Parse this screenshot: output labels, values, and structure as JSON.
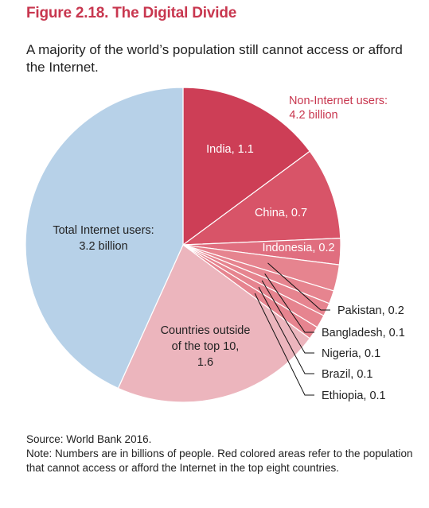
{
  "figure": {
    "title": "Figure 2.18. The Digital Divide",
    "subtitle": "A majority of the world’s population still cannot access or afford the Internet.",
    "source": "Source: World Bank 2016.",
    "note": "Note: Numbers are in billions of people. Red colored areas refer to the population that cannot access or afford the Internet in the top eight countries."
  },
  "colors": {
    "title": "#c8374f",
    "internet_users": "#b7d1e8",
    "india": "#cd3e56",
    "china": "#d85468",
    "indonesia": "#e06e7f",
    "small_countries": "#e6848f",
    "outside_top10": "#ecb5bd",
    "non_internet_label": "#c8374f",
    "leader_lines": "#111111"
  },
  "chart_data": {
    "type": "pie",
    "unit": "billions of people",
    "annotation": {
      "line1": "Non-Internet users:",
      "line2": "4.2 billion"
    },
    "slices": [
      {
        "key": "india",
        "label_lines": [
          "India, 1.1"
        ],
        "value": 1.1,
        "color_key": "india"
      },
      {
        "key": "china",
        "label_lines": [
          "China, 0.7"
        ],
        "value": 0.7,
        "color_key": "china"
      },
      {
        "key": "indonesia",
        "label_lines": [
          "Indonesia, 0.2"
        ],
        "value": 0.2,
        "color_key": "indonesia"
      },
      {
        "key": "pakistan",
        "label_lines": [
          "Pakistan, 0.2"
        ],
        "value": 0.2,
        "color_key": "small_countries"
      },
      {
        "key": "bangladesh",
        "label_lines": [
          "Bangladesh, 0.1"
        ],
        "value": 0.1,
        "color_key": "small_countries"
      },
      {
        "key": "nigeria",
        "label_lines": [
          "Nigeria, 0.1"
        ],
        "value": 0.1,
        "color_key": "small_countries"
      },
      {
        "key": "brazil",
        "label_lines": [
          "Brazil, 0.1"
        ],
        "value": 0.1,
        "color_key": "small_countries"
      },
      {
        "key": "ethiopia",
        "label_lines": [
          "Ethiopia, 0.1"
        ],
        "value": 0.1,
        "color_key": "small_countries"
      },
      {
        "key": "outside-top-10",
        "label_lines": [
          "Countries outside",
          "of the top 10,",
          "1.6"
        ],
        "value": 1.6,
        "color_key": "outside_top10"
      },
      {
        "key": "internet-users",
        "label_lines": [
          "Total Internet users:",
          "3.2 billion"
        ],
        "value": 3.2,
        "color_key": "internet_users"
      }
    ]
  }
}
